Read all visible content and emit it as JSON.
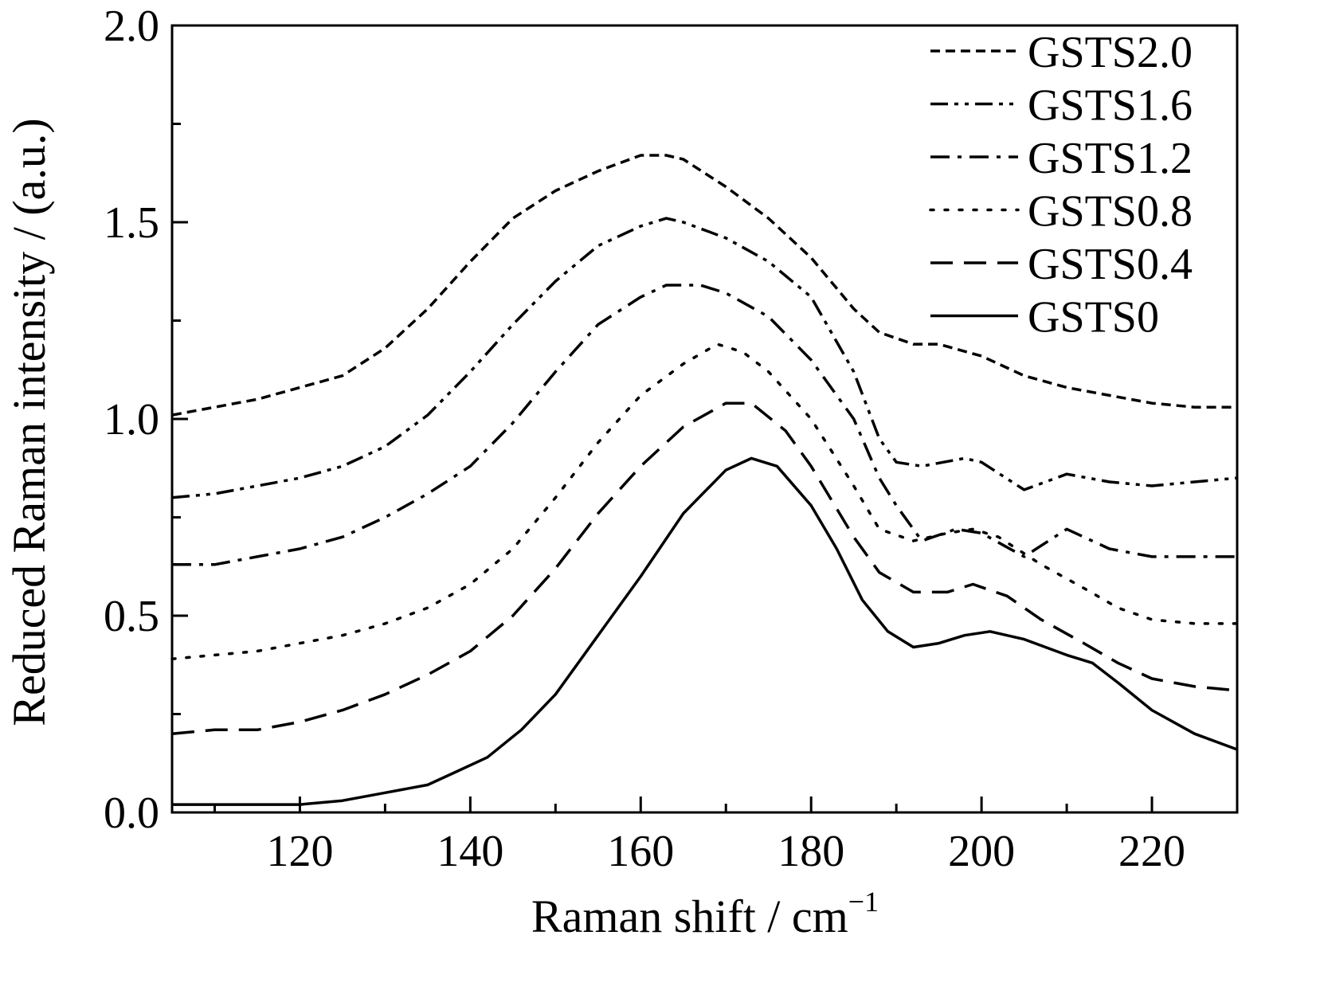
{
  "chart_data": {
    "type": "line",
    "xlabel": "Raman shift / cm",
    "xlabel_sup": "−1",
    "ylabel": "Reduced Raman intensity / (a.u.)",
    "xlim": [
      105,
      230
    ],
    "ylim": [
      0,
      2.0
    ],
    "x_ticks": [
      120,
      140,
      160,
      180,
      200,
      220
    ],
    "x_tick_labels": [
      "120",
      "140",
      "160",
      "180",
      "200",
      "220"
    ],
    "y_ticks": [
      0,
      0.5,
      1.0,
      1.5,
      2.0
    ],
    "y_tick_labels": [
      "0.0",
      "0.5",
      "1.0",
      "1.5",
      "2.0"
    ],
    "grid": false,
    "legend_position": "top-right",
    "series": [
      {
        "name": "GSTS2.0",
        "dash": "dash-short",
        "points": [
          [
            105,
            1.01
          ],
          [
            110,
            1.03
          ],
          [
            115,
            1.05
          ],
          [
            120,
            1.08
          ],
          [
            125,
            1.11
          ],
          [
            130,
            1.18
          ],
          [
            135,
            1.28
          ],
          [
            140,
            1.4
          ],
          [
            145,
            1.51
          ],
          [
            150,
            1.58
          ],
          [
            155,
            1.63
          ],
          [
            160,
            1.67
          ],
          [
            163,
            1.67
          ],
          [
            165,
            1.66
          ],
          [
            170,
            1.59
          ],
          [
            175,
            1.51
          ],
          [
            180,
            1.41
          ],
          [
            185,
            1.28
          ],
          [
            188,
            1.22
          ],
          [
            192,
            1.19
          ],
          [
            195,
            1.19
          ],
          [
            200,
            1.16
          ],
          [
            205,
            1.11
          ],
          [
            210,
            1.08
          ],
          [
            215,
            1.06
          ],
          [
            220,
            1.04
          ],
          [
            225,
            1.03
          ],
          [
            230,
            1.03
          ]
        ]
      },
      {
        "name": "GSTS1.6",
        "dash": "dash-dot-dot",
        "points": [
          [
            105,
            0.8
          ],
          [
            110,
            0.81
          ],
          [
            115,
            0.83
          ],
          [
            120,
            0.85
          ],
          [
            125,
            0.88
          ],
          [
            130,
            0.93
          ],
          [
            135,
            1.01
          ],
          [
            140,
            1.12
          ],
          [
            145,
            1.24
          ],
          [
            150,
            1.35
          ],
          [
            155,
            1.44
          ],
          [
            160,
            1.49
          ],
          [
            163,
            1.51
          ],
          [
            165,
            1.5
          ],
          [
            170,
            1.46
          ],
          [
            175,
            1.4
          ],
          [
            180,
            1.31
          ],
          [
            185,
            1.12
          ],
          [
            188,
            0.95
          ],
          [
            190,
            0.89
          ],
          [
            193,
            0.88
          ],
          [
            198,
            0.9
          ],
          [
            200,
            0.89
          ],
          [
            205,
            0.82
          ],
          [
            210,
            0.86
          ],
          [
            215,
            0.84
          ],
          [
            220,
            0.83
          ],
          [
            225,
            0.84
          ],
          [
            230,
            0.85
          ]
        ]
      },
      {
        "name": "GSTS1.2",
        "dash": "dash-dot",
        "points": [
          [
            105,
            0.63
          ],
          [
            110,
            0.63
          ],
          [
            115,
            0.65
          ],
          [
            120,
            0.67
          ],
          [
            125,
            0.7
          ],
          [
            130,
            0.75
          ],
          [
            135,
            0.81
          ],
          [
            140,
            0.88
          ],
          [
            145,
            0.99
          ],
          [
            150,
            1.12
          ],
          [
            155,
            1.24
          ],
          [
            160,
            1.31
          ],
          [
            163,
            1.34
          ],
          [
            167,
            1.34
          ],
          [
            170,
            1.32
          ],
          [
            175,
            1.26
          ],
          [
            180,
            1.15
          ],
          [
            185,
            1.0
          ],
          [
            188,
            0.85
          ],
          [
            190,
            0.78
          ],
          [
            193,
            0.69
          ],
          [
            197,
            0.72
          ],
          [
            200,
            0.71
          ],
          [
            205,
            0.65
          ],
          [
            210,
            0.72
          ],
          [
            215,
            0.67
          ],
          [
            220,
            0.65
          ],
          [
            225,
            0.65
          ],
          [
            230,
            0.65
          ]
        ]
      },
      {
        "name": "GSTS0.8",
        "dash": "dot",
        "points": [
          [
            105,
            0.39
          ],
          [
            110,
            0.4
          ],
          [
            115,
            0.41
          ],
          [
            120,
            0.43
          ],
          [
            125,
            0.45
          ],
          [
            130,
            0.48
          ],
          [
            135,
            0.52
          ],
          [
            140,
            0.58
          ],
          [
            145,
            0.67
          ],
          [
            150,
            0.8
          ],
          [
            155,
            0.94
          ],
          [
            160,
            1.06
          ],
          [
            165,
            1.14
          ],
          [
            169,
            1.19
          ],
          [
            172,
            1.17
          ],
          [
            175,
            1.12
          ],
          [
            180,
            1.0
          ],
          [
            185,
            0.83
          ],
          [
            188,
            0.72
          ],
          [
            192,
            0.69
          ],
          [
            196,
            0.71
          ],
          [
            199,
            0.72
          ],
          [
            202,
            0.7
          ],
          [
            207,
            0.63
          ],
          [
            212,
            0.57
          ],
          [
            216,
            0.52
          ],
          [
            220,
            0.49
          ],
          [
            225,
            0.48
          ],
          [
            230,
            0.48
          ]
        ]
      },
      {
        "name": "GSTS0.4",
        "dash": "dash-long",
        "points": [
          [
            105,
            0.2
          ],
          [
            110,
            0.21
          ],
          [
            115,
            0.21
          ],
          [
            120,
            0.23
          ],
          [
            125,
            0.26
          ],
          [
            130,
            0.3
          ],
          [
            135,
            0.35
          ],
          [
            140,
            0.41
          ],
          [
            145,
            0.5
          ],
          [
            150,
            0.62
          ],
          [
            155,
            0.76
          ],
          [
            160,
            0.88
          ],
          [
            165,
            0.98
          ],
          [
            170,
            1.04
          ],
          [
            173,
            1.04
          ],
          [
            177,
            0.97
          ],
          [
            180,
            0.88
          ],
          [
            185,
            0.7
          ],
          [
            188,
            0.61
          ],
          [
            192,
            0.56
          ],
          [
            196,
            0.56
          ],
          [
            199,
            0.58
          ],
          [
            203,
            0.55
          ],
          [
            207,
            0.49
          ],
          [
            212,
            0.43
          ],
          [
            216,
            0.38
          ],
          [
            220,
            0.34
          ],
          [
            225,
            0.32
          ],
          [
            230,
            0.31
          ]
        ]
      },
      {
        "name": "GSTS0",
        "dash": "solid",
        "points": [
          [
            105,
            0.02
          ],
          [
            110,
            0.02
          ],
          [
            115,
            0.02
          ],
          [
            120,
            0.02
          ],
          [
            125,
            0.03
          ],
          [
            130,
            0.05
          ],
          [
            135,
            0.07
          ],
          [
            138,
            0.1
          ],
          [
            142,
            0.14
          ],
          [
            146,
            0.21
          ],
          [
            150,
            0.3
          ],
          [
            155,
            0.45
          ],
          [
            160,
            0.6
          ],
          [
            165,
            0.76
          ],
          [
            170,
            0.87
          ],
          [
            173,
            0.9
          ],
          [
            176,
            0.88
          ],
          [
            180,
            0.78
          ],
          [
            183,
            0.67
          ],
          [
            186,
            0.54
          ],
          [
            189,
            0.46
          ],
          [
            192,
            0.42
          ],
          [
            195,
            0.43
          ],
          [
            198,
            0.45
          ],
          [
            201,
            0.46
          ],
          [
            205,
            0.44
          ],
          [
            210,
            0.4
          ],
          [
            213,
            0.38
          ],
          [
            216,
            0.33
          ],
          [
            220,
            0.26
          ],
          [
            225,
            0.2
          ],
          [
            230,
            0.16
          ]
        ]
      }
    ]
  }
}
